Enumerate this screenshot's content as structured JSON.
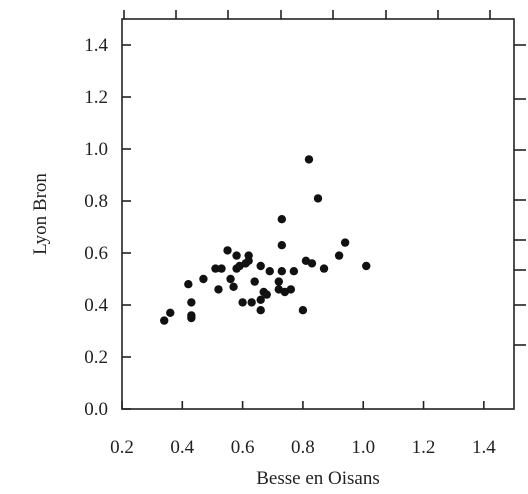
{
  "chart_data": {
    "type": "scatter",
    "title": "",
    "xlabel": "Besse en Oisans",
    "ylabel": "Lyon Bron",
    "xlim": [
      0.2,
      1.5
    ],
    "ylim": [
      0.0,
      1.5
    ],
    "x_ticks": [
      "0.2",
      "0.4",
      "0.6",
      "0.8",
      "1.0",
      "1.2",
      "1.4"
    ],
    "y_ticks": [
      "0.0",
      "0.2",
      "0.4",
      "0.6",
      "0.8",
      "1.0",
      "1.2",
      "1.4"
    ],
    "grid": false,
    "legend": "none",
    "point_color": "#111111",
    "series": [
      {
        "points": [
          [
            0.34,
            0.34
          ],
          [
            0.36,
            0.37
          ],
          [
            0.42,
            0.48
          ],
          [
            0.43,
            0.35
          ],
          [
            0.43,
            0.36
          ],
          [
            0.43,
            0.41
          ],
          [
            0.47,
            0.5
          ],
          [
            0.51,
            0.54
          ],
          [
            0.52,
            0.46
          ],
          [
            0.53,
            0.54
          ],
          [
            0.55,
            0.61
          ],
          [
            0.56,
            0.5
          ],
          [
            0.57,
            0.47
          ],
          [
            0.58,
            0.54
          ],
          [
            0.58,
            0.59
          ],
          [
            0.59,
            0.55
          ],
          [
            0.6,
            0.41
          ],
          [
            0.61,
            0.56
          ],
          [
            0.62,
            0.57
          ],
          [
            0.62,
            0.59
          ],
          [
            0.63,
            0.41
          ],
          [
            0.64,
            0.49
          ],
          [
            0.66,
            0.38
          ],
          [
            0.66,
            0.42
          ],
          [
            0.66,
            0.55
          ],
          [
            0.67,
            0.45
          ],
          [
            0.68,
            0.44
          ],
          [
            0.69,
            0.53
          ],
          [
            0.72,
            0.46
          ],
          [
            0.72,
            0.49
          ],
          [
            0.73,
            0.63
          ],
          [
            0.73,
            0.73
          ],
          [
            0.73,
            0.53
          ],
          [
            0.74,
            0.45
          ],
          [
            0.76,
            0.46
          ],
          [
            0.77,
            0.53
          ],
          [
            0.8,
            0.38
          ],
          [
            0.81,
            0.57
          ],
          [
            0.82,
            0.96
          ],
          [
            0.83,
            0.56
          ],
          [
            0.85,
            0.81
          ],
          [
            0.87,
            0.54
          ],
          [
            0.92,
            0.59
          ],
          [
            0.94,
            0.64
          ],
          [
            1.01,
            0.55
          ]
        ]
      }
    ]
  }
}
